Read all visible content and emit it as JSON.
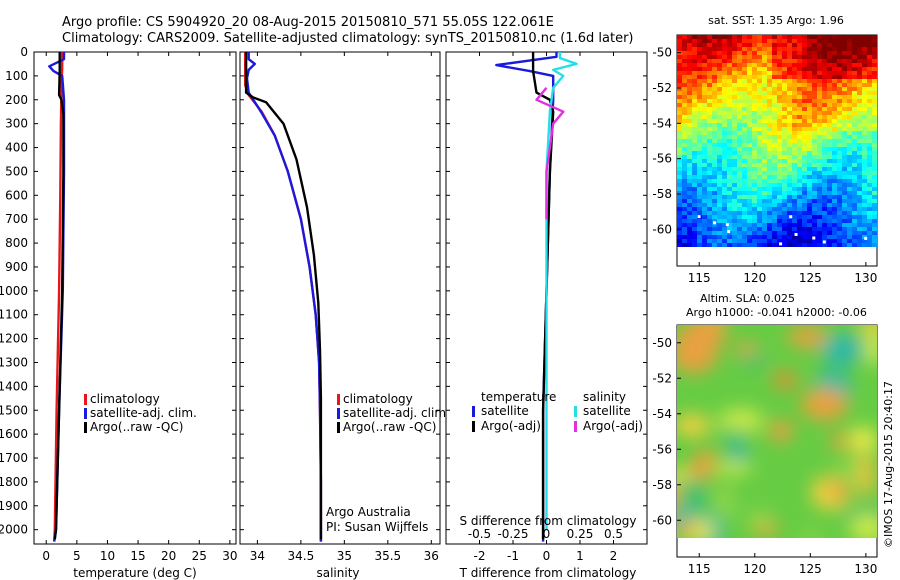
{
  "figure": {
    "title_line1": "Argo profile: CS 5904920_20 08-Aug-2015 20150810_571 55.05S 122.061E",
    "title_line2": "Climatology: CARS2009. Satellite-adjusted climatology: synTS_20150810.nc (1.6d later)",
    "credit": "©IMOS 17-Aug-2015 20:40:17",
    "argo_note_line1": "Argo Australia",
    "argo_note_line2": "PI: Susan Wijffels"
  },
  "colors": {
    "climatology": "#e8161b",
    "satellite": "#1a1adc",
    "argo": "#000000",
    "sat_salinity": "#22e0e6",
    "argo_salinity_diff": "#e030e0"
  },
  "chart_data": [
    {
      "type": "line",
      "id": "temperature",
      "xlabel": "temperature (deg C)",
      "xlim": [
        -2,
        31
      ],
      "ylim": [
        0,
        2060
      ],
      "y_inverted": true,
      "xticks": [
        "0",
        "5",
        "10",
        "15",
        "20",
        "25",
        "30"
      ],
      "xtick_values": [
        0,
        5,
        10,
        15,
        20,
        25,
        30
      ],
      "yticks": [
        "0",
        "100",
        "200",
        "300",
        "400",
        "500",
        "600",
        "700",
        "800",
        "900",
        "1000",
        "1100",
        "1200",
        "1300",
        "1400",
        "1500",
        "1600",
        "1700",
        "1800",
        "1900",
        "2000"
      ],
      "ytick_values": [
        0,
        100,
        200,
        300,
        400,
        500,
        600,
        700,
        800,
        900,
        1000,
        1100,
        1200,
        1300,
        1400,
        1500,
        1600,
        1700,
        1800,
        1900,
        2000
      ],
      "legend": [
        "climatology",
        "satellite-adj. clim.",
        "Argo(..raw -QC)"
      ],
      "series": [
        {
          "name": "climatology",
          "color_key": "climatology",
          "points": [
            [
              2.6,
              0
            ],
            [
              2.6,
              60
            ],
            [
              2.5,
              150
            ],
            [
              2.4,
              300
            ],
            [
              2.3,
              600
            ],
            [
              2.1,
              1000
            ],
            [
              1.7,
              1500
            ],
            [
              1.4,
              2000
            ],
            [
              1.3,
              2050
            ]
          ]
        },
        {
          "name": "satellite-adj. clim.",
          "color_key": "satellite",
          "points": [
            [
              2.9,
              0
            ],
            [
              2.9,
              30
            ],
            [
              0.5,
              60
            ],
            [
              1.2,
              80
            ],
            [
              2.6,
              100
            ],
            [
              2.9,
              200
            ],
            [
              2.9,
              500
            ],
            [
              2.7,
              1000
            ],
            [
              2.1,
              1500
            ],
            [
              1.6,
              2000
            ],
            [
              1.3,
              2050
            ]
          ]
        },
        {
          "name": "Argo(..raw -QC)",
          "color_key": "argo",
          "points": [
            [
              2.2,
              0
            ],
            [
              2.2,
              80
            ],
            [
              2.1,
              180
            ],
            [
              2.5,
              200
            ],
            [
              2.8,
              260
            ],
            [
              2.8,
              500
            ],
            [
              2.6,
              1000
            ],
            [
              2.1,
              1500
            ],
            [
              1.6,
              2000
            ],
            [
              1.4,
              2040
            ]
          ]
        }
      ]
    },
    {
      "type": "line",
      "id": "salinity",
      "xlabel": "salinity",
      "xlim": [
        33.8,
        36.1
      ],
      "ylim": [
        0,
        2060
      ],
      "y_inverted": true,
      "xticks": [
        "34",
        "34.5",
        "35",
        "35.5",
        "36"
      ],
      "xtick_values": [
        34,
        34.5,
        35,
        35.5,
        36
      ],
      "legend": [
        "climatology",
        "satellite-adj. clim.",
        "Argo(..raw -QC)"
      ],
      "series": [
        {
          "name": "climatology",
          "color_key": "climatology",
          "points": [
            [
              33.86,
              0
            ],
            [
              33.86,
              140
            ],
            [
              33.9,
              180
            ],
            [
              34.05,
              250
            ],
            [
              34.2,
              350
            ],
            [
              34.35,
              500
            ],
            [
              34.5,
              700
            ],
            [
              34.6,
              900
            ],
            [
              34.67,
              1100
            ],
            [
              34.71,
              1300
            ],
            [
              34.72,
              1500
            ],
            [
              34.73,
              1800
            ],
            [
              34.73,
              2050
            ]
          ]
        },
        {
          "name": "satellite-adj. clim.",
          "color_key": "satellite",
          "points": [
            [
              33.9,
              0
            ],
            [
              33.9,
              30
            ],
            [
              33.97,
              50
            ],
            [
              33.9,
              75
            ],
            [
              33.88,
              110
            ],
            [
              33.9,
              170
            ],
            [
              34.04,
              250
            ],
            [
              34.2,
              350
            ],
            [
              34.35,
              500
            ],
            [
              34.5,
              700
            ],
            [
              34.6,
              900
            ],
            [
              34.67,
              1100
            ],
            [
              34.71,
              1300
            ],
            [
              34.72,
              1500
            ],
            [
              34.73,
              1800
            ],
            [
              34.73,
              2050
            ]
          ]
        },
        {
          "name": "Argo(..raw -QC)",
          "color_key": "argo",
          "points": [
            [
              33.87,
              0
            ],
            [
              33.87,
              170
            ],
            [
              33.95,
              190
            ],
            [
              34.1,
              210
            ],
            [
              34.3,
              300
            ],
            [
              34.45,
              450
            ],
            [
              34.57,
              650
            ],
            [
              34.65,
              850
            ],
            [
              34.7,
              1050
            ],
            [
              34.72,
              1250
            ],
            [
              34.73,
              1450
            ],
            [
              34.73,
              1800
            ],
            [
              34.73,
              2040
            ]
          ]
        }
      ]
    },
    {
      "type": "line",
      "id": "difference",
      "xlabel": "T difference from climatology",
      "xlabel_top": "S difference from climatology",
      "xlim": [
        -3,
        3
      ],
      "ylim": [
        0,
        2060
      ],
      "y_inverted": true,
      "xticks": [
        "-2",
        "-1",
        "0",
        "1",
        "2"
      ],
      "xtick_values": [
        -2,
        -1,
        0,
        1,
        2
      ],
      "sticks": [
        "-0.5",
        "-0.25",
        "0",
        "0.25",
        "0.5"
      ],
      "stick_positions": [
        -2,
        -1,
        0,
        1,
        2
      ],
      "legend_titles": [
        "temperature",
        "salinity"
      ],
      "legend": [
        "satellite",
        "Argo(-adj)",
        "satellite",
        "Argo(-adj)"
      ],
      "series": [
        {
          "name": "satellite",
          "group": "temperature",
          "color_key": "satellite",
          "points": [
            [
              0.3,
              0
            ],
            [
              0.3,
              20
            ],
            [
              -1.5,
              55
            ],
            [
              -0.5,
              80
            ],
            [
              0.2,
              100
            ],
            [
              0.2,
              200
            ],
            [
              0.1,
              500
            ],
            [
              0.0,
              1000
            ],
            [
              -0.1,
              1500
            ],
            [
              -0.1,
              2000
            ],
            [
              -0.1,
              2050
            ]
          ]
        },
        {
          "name": "Argo(-adj)",
          "group": "temperature",
          "color_key": "argo",
          "points": [
            [
              -0.4,
              0
            ],
            [
              -0.4,
              80
            ],
            [
              -0.3,
              170
            ],
            [
              0.1,
              200
            ],
            [
              0.2,
              250
            ],
            [
              0.1,
              500
            ],
            [
              0.0,
              1000
            ],
            [
              -0.1,
              1500
            ],
            [
              -0.1,
              2000
            ],
            [
              -0.1,
              2040
            ]
          ]
        },
        {
          "name": "satellite",
          "group": "salinity",
          "color_key": "sat_salinity",
          "points": [
            [
              0.4,
              0
            ],
            [
              0.4,
              25
            ],
            [
              0.9,
              50
            ],
            [
              0.2,
              75
            ],
            [
              0.5,
              100
            ],
            [
              0.2,
              150
            ],
            [
              0.1,
              250
            ],
            [
              0.0,
              500
            ],
            [
              0.0,
              1000
            ],
            [
              0.0,
              1500
            ],
            [
              0.0,
              2000
            ]
          ]
        },
        {
          "name": "Argo(-adj)",
          "group": "salinity",
          "color_key": "argo_salinity_diff",
          "points": [
            [
              0.0,
              150
            ],
            [
              -0.3,
              200
            ],
            [
              0.5,
              250
            ],
            [
              0.2,
              300
            ],
            [
              0.1,
              400
            ],
            [
              0.0,
              500
            ],
            [
              0.0,
              700
            ]
          ]
        }
      ]
    },
    {
      "type": "heatmap",
      "id": "sst_map",
      "title": "sat. SST: 1.35 Argo: 1.96",
      "xticks": [
        "115",
        "120",
        "125",
        "130"
      ],
      "xtick_values": [
        115,
        120,
        125,
        130
      ],
      "yticks": [
        "-50",
        "-52",
        "-54",
        "-56",
        "-58",
        "-60"
      ],
      "ytick_values": [
        -50,
        -52,
        -54,
        -56,
        -58,
        -60
      ],
      "xlim": [
        113,
        131
      ],
      "ylim": [
        -61,
        -49
      ]
    },
    {
      "type": "heatmap",
      "id": "sla_map",
      "title_line1": "Altim. SLA: 0.025",
      "title_line2": "Argo h1000: -0.041 h2000: -0.06",
      "xticks": [
        "115",
        "120",
        "125",
        "130"
      ],
      "xtick_values": [
        115,
        120,
        125,
        130
      ],
      "yticks": [
        "-50",
        "-52",
        "-54",
        "-56",
        "-58",
        "-60"
      ],
      "ytick_values": [
        -50,
        -52,
        -54,
        -56,
        -58,
        -60
      ],
      "xlim": [
        113,
        131
      ],
      "ylim": [
        -61,
        -49
      ]
    }
  ]
}
